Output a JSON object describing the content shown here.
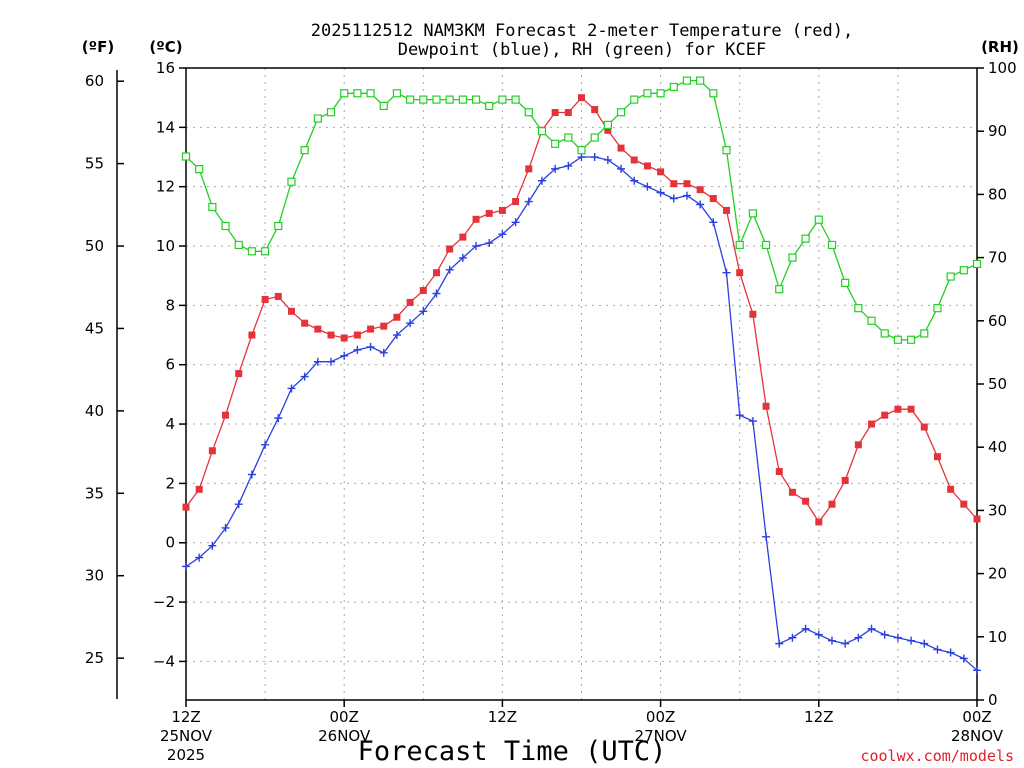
{
  "chart_data": {
    "type": "line",
    "title_line1": "2025112512 NAM3KM Forecast 2-meter Temperature (red),",
    "title_line2": "Dewpoint (blue), RH (green) for KCEF",
    "xlabel": "Forecast Time (UTC)",
    "credit": "coolwx.com/models",
    "units": {
      "f": "(ºF)",
      "c": "(ºC)",
      "rh": "(RH)"
    },
    "hours_range": [
      0,
      60
    ],
    "x_ticks": [
      {
        "hour": 0,
        "l1": "12Z",
        "l2": "25NOV",
        "l3": "2025"
      },
      {
        "hour": 12,
        "l1": "00Z",
        "l2": "26NOV",
        "l3": ""
      },
      {
        "hour": 24,
        "l1": "12Z",
        "l2": "",
        "l3": ""
      },
      {
        "hour": 36,
        "l1": "00Z",
        "l2": "27NOV",
        "l3": ""
      },
      {
        "hour": 48,
        "l1": "12Z",
        "l2": "",
        "l3": ""
      },
      {
        "hour": 60,
        "l1": "00Z",
        "l2": "28NOV",
        "l3": ""
      }
    ],
    "c_axis": {
      "min": -5.3,
      "max": 16,
      "ticks": [
        16,
        14,
        12,
        10,
        8,
        6,
        4,
        2,
        0,
        -2,
        -4
      ]
    },
    "c_tick_labels": [
      "16",
      "14",
      "12",
      "10",
      "8",
      "6",
      "4",
      "2",
      "0",
      "−2",
      "−4"
    ],
    "f_axis": {
      "ticks": [
        60,
        55,
        50,
        45,
        40,
        35,
        30,
        25
      ]
    },
    "f_tick_labels": [
      "60",
      "55",
      "50",
      "45",
      "40",
      "35",
      "30",
      "25"
    ],
    "rh_axis": {
      "min": 0,
      "max": 100,
      "ticks": [
        100,
        90,
        80,
        70,
        60,
        50,
        40,
        30,
        20,
        10,
        0
      ]
    },
    "rh_tick_labels": [
      "100",
      "90",
      "80",
      "70",
      "60",
      "50",
      "40",
      "30",
      "20",
      "10",
      "0"
    ],
    "series": [
      {
        "name": "Temperature (°C)",
        "color": "#e5333a",
        "marker": "filled-square",
        "axis": "c",
        "values": [
          1.2,
          1.8,
          3.1,
          4.3,
          5.7,
          7.0,
          8.2,
          8.3,
          7.8,
          7.4,
          7.2,
          7.0,
          6.9,
          7.0,
          7.2,
          7.3,
          7.6,
          8.1,
          8.5,
          9.1,
          9.9,
          10.3,
          10.9,
          11.1,
          11.2,
          11.5,
          12.6,
          13.9,
          14.5,
          14.5,
          15.0,
          14.6,
          13.9,
          13.3,
          12.9,
          12.7,
          12.5,
          12.1,
          12.1,
          11.9,
          11.6,
          11.2,
          9.1,
          7.7,
          4.6,
          2.4,
          1.7,
          1.4,
          0.7,
          1.3,
          2.1,
          3.3,
          4.0,
          4.3,
          4.5,
          4.5,
          3.9,
          2.9,
          1.8,
          1.3,
          0.8
        ]
      },
      {
        "name": "Dewpoint (°C)",
        "color": "#2a3fe0",
        "marker": "plus",
        "axis": "c",
        "values": [
          -0.8,
          -0.5,
          -0.1,
          0.5,
          1.3,
          2.3,
          3.3,
          4.2,
          5.2,
          5.6,
          6.1,
          6.1,
          6.3,
          6.5,
          6.6,
          6.4,
          7.0,
          7.4,
          7.8,
          8.4,
          9.2,
          9.6,
          10.0,
          10.1,
          10.4,
          10.8,
          11.5,
          12.2,
          12.6,
          12.7,
          13.0,
          13.0,
          12.9,
          12.6,
          12.2,
          12.0,
          11.8,
          11.6,
          11.7,
          11.4,
          10.8,
          9.1,
          4.3,
          4.1,
          0.2,
          -3.4,
          -3.2,
          -2.9,
          -3.1,
          -3.3,
          -3.4,
          -3.2,
          -2.9,
          -3.1,
          -3.2,
          -3.3,
          -3.4,
          -3.6,
          -3.7,
          -3.9,
          -4.3
        ]
      },
      {
        "name": "RH (%)",
        "color": "#22d022",
        "marker": "open-square",
        "axis": "rh",
        "values": [
          86,
          84,
          78,
          75,
          72,
          71,
          71,
          75,
          82,
          87,
          92,
          93,
          96,
          96,
          96,
          94,
          96,
          95,
          95,
          95,
          95,
          95,
          95,
          94,
          95,
          95,
          93,
          90,
          88,
          89,
          87,
          89,
          91,
          93,
          95,
          96,
          96,
          97,
          98,
          98,
          96,
          87,
          72,
          77,
          72,
          65,
          70,
          73,
          76,
          72,
          66,
          62,
          60,
          58,
          57,
          57,
          58,
          62,
          67,
          68,
          69
        ]
      }
    ]
  }
}
